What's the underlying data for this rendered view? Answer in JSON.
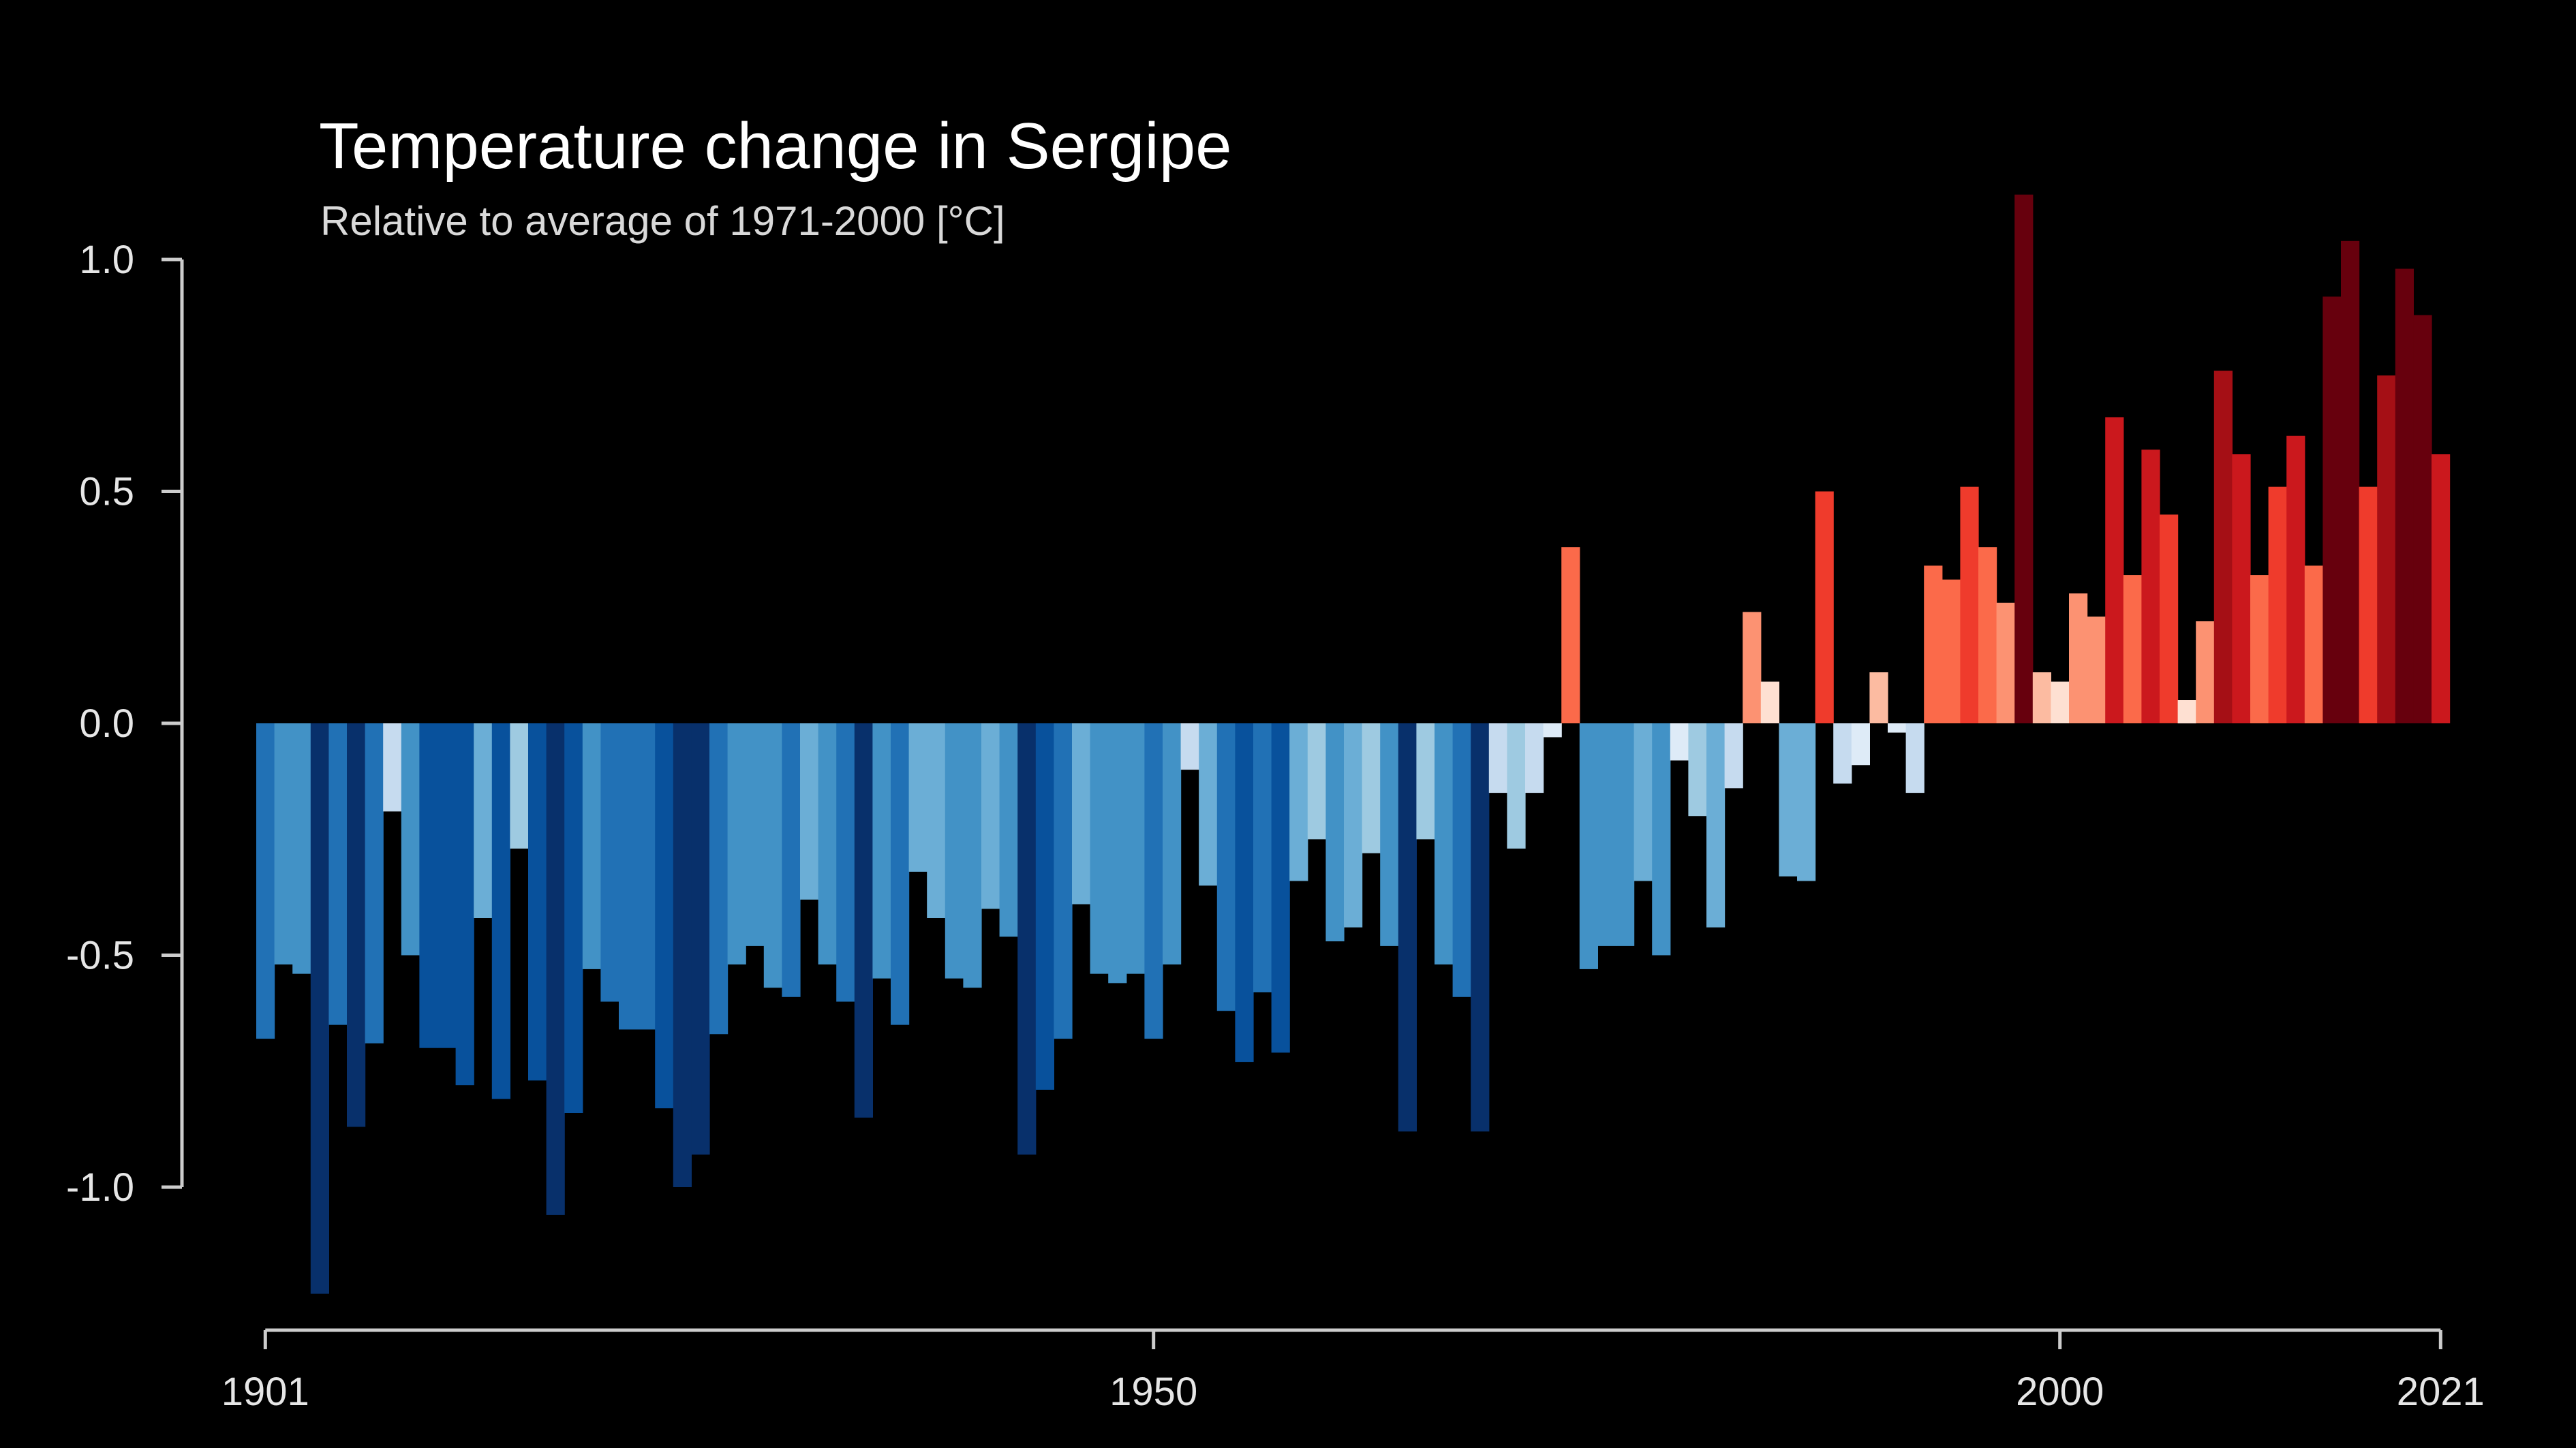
{
  "chart_data": {
    "type": "bar",
    "title": "Temperature change in Sergipe",
    "subtitle": "Relative to average of 1971-2000  [°C]",
    "xlabel": "",
    "ylabel": "",
    "x_start": 1901,
    "x_end": 2021,
    "ylim": [
      -1.3,
      1.2
    ],
    "x_ticks": [
      "1901",
      "1950",
      "2000",
      "2021"
    ],
    "y_ticks": [
      "1.0",
      "0.5",
      "0.0",
      "-0.5",
      "-1.0"
    ],
    "grid": false,
    "legend": "none",
    "colormap": "blue-white-red diverging (warming stripes)",
    "values": [
      -0.68,
      -0.52,
      -0.54,
      -1.23,
      -0.65,
      -0.87,
      -0.69,
      -0.19,
      -0.5,
      -0.7,
      -0.7,
      -0.78,
      -0.42,
      -0.81,
      -0.27,
      -0.77,
      -1.06,
      -0.84,
      -0.53,
      -0.6,
      -0.66,
      -0.66,
      -0.83,
      -1.0,
      -0.93,
      -0.67,
      -0.52,
      -0.48,
      -0.57,
      -0.59,
      -0.38,
      -0.52,
      -0.6,
      -0.85,
      -0.55,
      -0.65,
      -0.32,
      -0.42,
      -0.55,
      -0.57,
      -0.4,
      -0.46,
      -0.93,
      -0.79,
      -0.68,
      -0.39,
      -0.54,
      -0.56,
      -0.54,
      -0.68,
      -0.52,
      -0.1,
      -0.35,
      -0.62,
      -0.73,
      -0.58,
      -0.71,
      -0.34,
      -0.25,
      -0.47,
      -0.44,
      -0.28,
      -0.48,
      -0.88,
      -0.25,
      -0.52,
      -0.59,
      -0.88,
      -0.15,
      -0.27,
      -0.15,
      -0.03,
      0.38,
      -0.53,
      -0.48,
      -0.48,
      -0.34,
      -0.5,
      -0.08,
      -0.2,
      -0.44,
      -0.14,
      0.24,
      0.09,
      -0.33,
      -0.34,
      0.5,
      -0.13,
      -0.09,
      0.11,
      -0.02,
      -0.15,
      0.34,
      0.31,
      0.51,
      0.38,
      0.26,
      1.14,
      0.11,
      0.09,
      0.28,
      0.23,
      0.66,
      0.32,
      0.59,
      0.45,
      0.05,
      0.22,
      0.76,
      0.58,
      0.32,
      0.51,
      0.62,
      0.34,
      0.92,
      1.04,
      0.51,
      0.75,
      0.98,
      0.88,
      0.58
    ]
  }
}
